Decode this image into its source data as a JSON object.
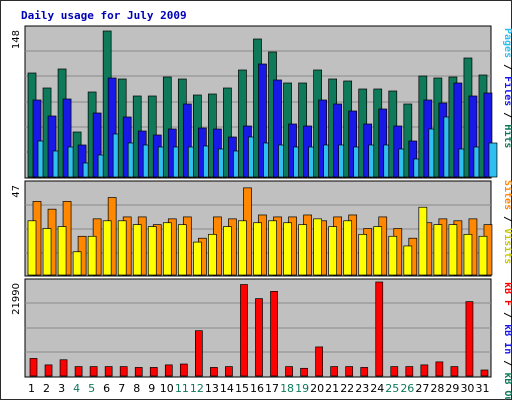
{
  "chart_data": {
    "title": "Daily usage for July 2009",
    "type": "bar",
    "x": [
      "1",
      "2",
      "3",
      "4",
      "5",
      "6",
      "7",
      "8",
      "9",
      "10",
      "11",
      "12",
      "13",
      "14",
      "15",
      "16",
      "17",
      "18",
      "19",
      "20",
      "21",
      "22",
      "23",
      "24",
      "25",
      "26",
      "27",
      "28",
      "29",
      "30",
      "31"
    ],
    "weekend_days": [
      "4",
      "5",
      "11",
      "12",
      "18",
      "19",
      "25",
      "26"
    ],
    "panels": [
      {
        "name": "traffic",
        "ymax_label": "148",
        "ymax": 148,
        "series": [
          {
            "name": "Hits",
            "color": "#0e7a5a",
            "values": [
              104,
              89,
              108,
              45,
              85,
              146,
              98,
              81,
              81,
              100,
              98,
              82,
              83,
              89,
              107,
              138,
              125,
              94,
              94,
              107,
              98,
              96,
              88,
              88,
              86,
              73,
              101,
              99,
              100,
              119,
              102
            ]
          },
          {
            "name": "Files",
            "color": "#1818e8",
            "values": [
              77,
              61,
              78,
              32,
              64,
              99,
              60,
              46,
              42,
              48,
              73,
              49,
              48,
              40,
              51,
              113,
              97,
              53,
              51,
              77,
              73,
              66,
              53,
              68,
              51,
              36,
              77,
              74,
              94,
              81,
              84
            ]
          },
          {
            "name": "Pages",
            "color": "#30c0f0",
            "values": [
              36,
              26,
              30,
              14,
              22,
              43,
              34,
              32,
              30,
              30,
              30,
              31,
              28,
              26,
              40,
              34,
              32,
              30,
              30,
              32,
              32,
              30,
              32,
              32,
              28,
              18,
              48,
              60,
              28,
              30,
              34
            ]
          }
        ]
      },
      {
        "name": "visits",
        "ymax_label": "47",
        "ymax": 47,
        "series": [
          {
            "name": "Sites",
            "color": "#ff8800",
            "values": [
              38,
              34,
              38,
              20,
              29,
              40,
              30,
              30,
              26,
              29,
              30,
              19,
              30,
              29,
              45,
              31,
              30,
              30,
              31,
              28,
              30,
              31,
              24,
              30,
              24,
              19,
              27,
              29,
              28,
              29,
              26
            ]
          },
          {
            "name": "Visits",
            "color": "#ffff00",
            "values": [
              28,
              24,
              25,
              12,
              20,
              28,
              28,
              26,
              25,
              27,
              26,
              17,
              21,
              25,
              28,
              27,
              28,
              27,
              26,
              29,
              25,
              28,
              21,
              25,
              20,
              15,
              35,
              26,
              26,
              21,
              20
            ]
          }
        ]
      },
      {
        "name": "kbytes",
        "ymax_label": "21990",
        "ymax": 21990,
        "series": [
          {
            "name": "kB F",
            "color": "#ff0000",
            "values": [
              4100,
              2600,
              3800,
              2200,
              2200,
              2200,
              2200,
              2000,
              2000,
              2600,
              2800,
              10600,
              2000,
              2200,
              21400,
              18100,
              19800,
              2200,
              1800,
              6800,
              2200,
              2200,
              2000,
              21990,
              2200,
              2200,
              2600,
              3300,
              2200,
              17400,
              1400
            ]
          },
          {
            "name": "kB Out",
            "color": "#0e7a5a",
            "values": []
          },
          {
            "name": "kB In",
            "color": "#1818e8",
            "values": []
          }
        ]
      }
    ],
    "legend_labels": {
      "traffic": [
        {
          "text": "Pages",
          "color": "#30c0f0"
        },
        {
          "text": " / ",
          "color": "#000000"
        },
        {
          "text": "Files",
          "color": "#1818e8"
        },
        {
          "text": " / ",
          "color": "#000000"
        },
        {
          "text": "Hits",
          "color": "#0e7a5a"
        }
      ],
      "visits": [
        {
          "text": "Sites",
          "color": "#ff8800"
        },
        {
          "text": " / ",
          "color": "#000000"
        },
        {
          "text": "Visits",
          "color": "#c8c800"
        }
      ],
      "kbytes": [
        {
          "text": "kB F",
          "color": "#ff0000"
        },
        {
          "text": " / ",
          "color": "#000000"
        },
        {
          "text": "kB In",
          "color": "#1818e8"
        },
        {
          "text": " / ",
          "color": "#000000"
        },
        {
          "text": "kB Out",
          "color": "#0e7a5a"
        }
      ]
    },
    "colors": {
      "plot_bg": "#c0c0c0",
      "weekday_tick": "#000000",
      "weekend_tick": "#0e7a5a"
    }
  }
}
